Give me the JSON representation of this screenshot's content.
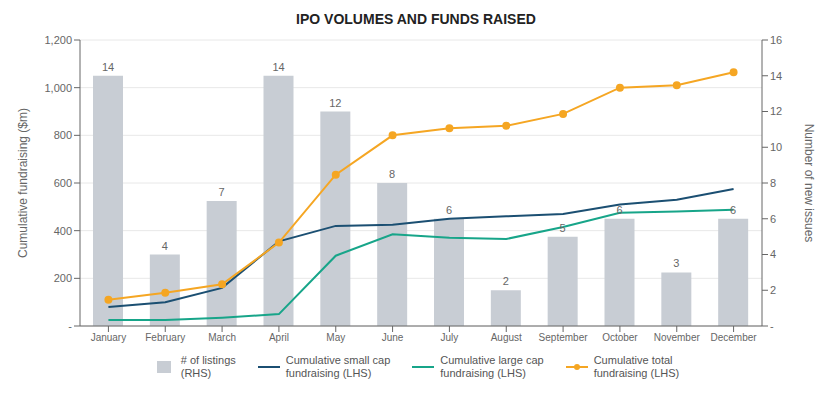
{
  "chart_data": {
    "type": "combo",
    "title": "IPO VOLUMES AND FUNDS RAISED",
    "categories": [
      "January",
      "February",
      "March",
      "April",
      "May",
      "June",
      "July",
      "August",
      "September",
      "October",
      "November",
      "December"
    ],
    "ylabel": "Cumulative fundraising ($m)",
    "y2label": "Number of new issues",
    "ylim": [
      0,
      1200
    ],
    "yticks": [
      {
        "value": 0,
        "label": "-"
      },
      200,
      400,
      600,
      800,
      {
        "value": 1000,
        "label": "1,000"
      },
      {
        "value": 1200,
        "label": "1,200"
      }
    ],
    "y2lim": [
      0,
      16
    ],
    "y2ticks": [
      {
        "value": 0,
        "label": "-"
      },
      2,
      4,
      6,
      8,
      10,
      12,
      14,
      16
    ],
    "grid": true,
    "legend": "bottom",
    "series": [
      {
        "name": "# of listings\n(RHS)",
        "type": "bar",
        "axis": "y2",
        "color": "#c8cdd4",
        "data_labels": true,
        "values": [
          14,
          4,
          7,
          14,
          12,
          8,
          6,
          2,
          5,
          6,
          3,
          6
        ]
      },
      {
        "name": "Cumulative small cap\nfundraising (LHS)",
        "type": "line",
        "color": "#1b4f72",
        "values": [
          80,
          100,
          160,
          355,
          420,
          425,
          450,
          460,
          470,
          510,
          530,
          575
        ]
      },
      {
        "name": "Cumulative large cap\nfundraising (LHS)",
        "type": "line",
        "color": "#17a589",
        "values": [
          25,
          25,
          35,
          50,
          295,
          385,
          370,
          365,
          415,
          475,
          480,
          488
        ]
      },
      {
        "name": "Cumulative total\nfundraising (LHS)",
        "type": "line",
        "color": "#f5a623",
        "marker": "circle",
        "values": [
          110,
          140,
          175,
          350,
          635,
          800,
          830,
          840,
          890,
          1000,
          1010,
          1065
        ]
      }
    ]
  }
}
